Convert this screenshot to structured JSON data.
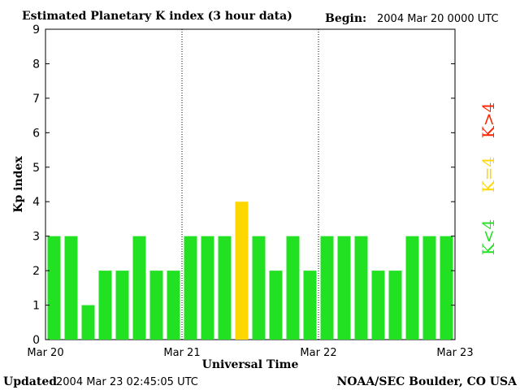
{
  "header": {
    "title": "Estimated Planetary K index (3 hour data)",
    "begin_label": "Begin:",
    "begin_value": "2004 Mar 20 0000 UTC"
  },
  "footer": {
    "updated_label": "Updated",
    "updated_value": "2004 Mar 23 02:45:05 UTC",
    "source": "NOAA/SEC Boulder, CO USA"
  },
  "legend": {
    "items": [
      {
        "label": "K>4",
        "color": "#ff2200"
      },
      {
        "label": "K=4",
        "color": "#ffd700"
      },
      {
        "label": "K<4",
        "color": "#22e022"
      }
    ]
  },
  "colors": {
    "low": "#22e022",
    "moderate": "#ffd700",
    "high": "#ff2200"
  },
  "chart_data": {
    "type": "bar",
    "xlabel": "Universal Time",
    "ylabel": "Kp index",
    "ylim": [
      0,
      9
    ],
    "y_ticks": [
      0,
      1,
      2,
      3,
      4,
      5,
      6,
      7,
      8,
      9
    ],
    "x_tick_labels": [
      "Mar 20",
      "Mar 21",
      "Mar 22",
      "Mar 23"
    ],
    "day_dividers": [
      "Mar 21",
      "Mar 22"
    ],
    "grid": false,
    "values": [
      3,
      3,
      1,
      2,
      2,
      3,
      2,
      2,
      3,
      3,
      3,
      4,
      3,
      2,
      3,
      2,
      3,
      3,
      3,
      2,
      2,
      3,
      3,
      3
    ]
  }
}
